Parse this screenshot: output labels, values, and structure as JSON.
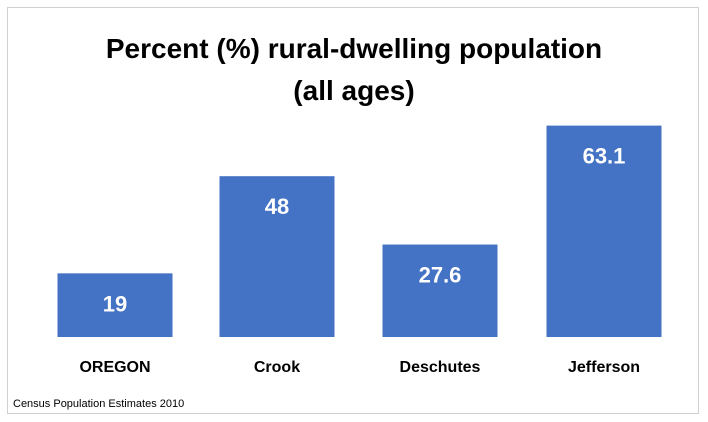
{
  "chart_data": {
    "type": "bar",
    "title_lines": [
      "Percent (%) rural-dwelling population",
      "(all ages)"
    ],
    "categories": [
      "OREGON",
      "Crook",
      "Deschutes",
      "Jefferson"
    ],
    "values": [
      19,
      48,
      27.6,
      63.1
    ],
    "data_labels": [
      "19",
      "48",
      "27.6",
      "63.1"
    ],
    "grid": false,
    "legend": "none",
    "bar_color": "#4472C4"
  },
  "source": "Census Population Estimates 2010"
}
